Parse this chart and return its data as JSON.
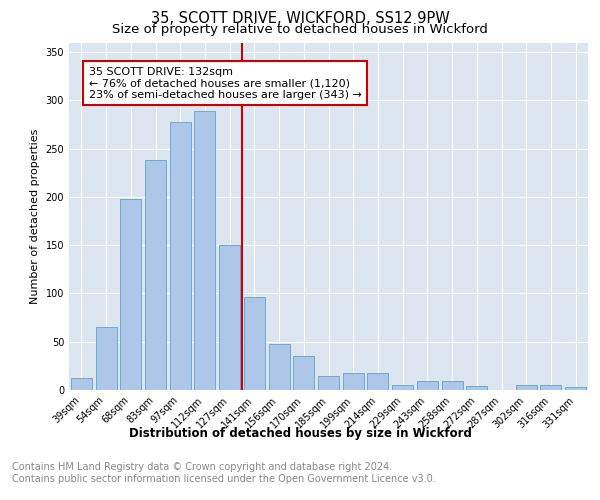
{
  "title": "35, SCOTT DRIVE, WICKFORD, SS12 9PW",
  "subtitle": "Size of property relative to detached houses in Wickford",
  "xlabel": "Distribution of detached houses by size in Wickford",
  "ylabel": "Number of detached properties",
  "categories": [
    "39sqm",
    "54sqm",
    "68sqm",
    "83sqm",
    "97sqm",
    "112sqm",
    "127sqm",
    "141sqm",
    "156sqm",
    "170sqm",
    "185sqm",
    "199sqm",
    "214sqm",
    "229sqm",
    "243sqm",
    "258sqm",
    "272sqm",
    "287sqm",
    "302sqm",
    "316sqm",
    "331sqm"
  ],
  "values": [
    12,
    65,
    198,
    238,
    278,
    289,
    150,
    96,
    48,
    35,
    15,
    18,
    18,
    5,
    9,
    9,
    4,
    0,
    5,
    5,
    3
  ],
  "bar_color": "#aec6e8",
  "bar_edge_color": "#6aaad4",
  "vline_color": "#cc0000",
  "annotation_text": "35 SCOTT DRIVE: 132sqm\n← 76% of detached houses are smaller (1,120)\n23% of semi-detached houses are larger (343) →",
  "annotation_box_color": "#cc0000",
  "annotation_fill": "#ffffff",
  "ylim": [
    0,
    360
  ],
  "yticks": [
    0,
    50,
    100,
    150,
    200,
    250,
    300,
    350
  ],
  "plot_bg_color": "#dce6f0",
  "footer_text": "Contains HM Land Registry data © Crown copyright and database right 2024.\nContains public sector information licensed under the Open Government Licence v3.0.",
  "title_fontsize": 10.5,
  "subtitle_fontsize": 9.5,
  "xlabel_fontsize": 8.5,
  "ylabel_fontsize": 8,
  "footer_fontsize": 7,
  "tick_fontsize": 7,
  "annotation_fontsize": 8
}
